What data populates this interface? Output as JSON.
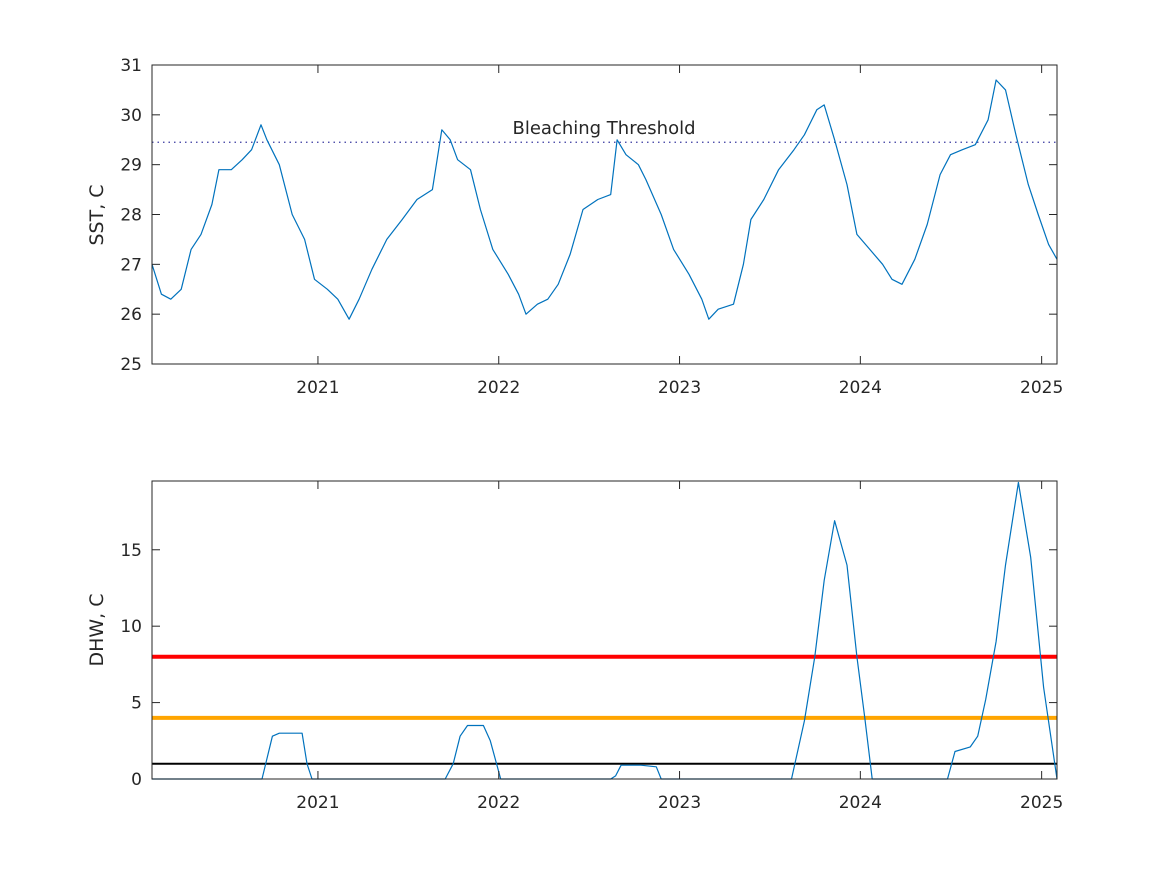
{
  "chart_data": [
    {
      "type": "line",
      "title": "",
      "xlabel": "",
      "ylabel": "SST, C",
      "xlim": [
        "2020-02-01",
        "2025-02-01"
      ],
      "ylim": [
        25,
        31
      ],
      "xticks": [
        "2021",
        "2022",
        "2023",
        "2024",
        "2025"
      ],
      "yticks": [
        "25",
        "26",
        "27",
        "28",
        "29",
        "30",
        "31"
      ],
      "grid": false,
      "threshold": {
        "label": "Bleaching Threshold",
        "value": 29.45,
        "style": "dotted",
        "color": "#3a3aa0"
      },
      "series": [
        {
          "color": "#0072BD",
          "points": [
            [
              "2020-02-01",
              27.0
            ],
            [
              "2020-02-20",
              26.4
            ],
            [
              "2020-03-10",
              26.3
            ],
            [
              "2020-03-31",
              26.5
            ],
            [
              "2020-04-20",
              27.3
            ],
            [
              "2020-05-10",
              27.6
            ],
            [
              "2020-06-01",
              28.2
            ],
            [
              "2020-06-15",
              28.9
            ],
            [
              "2020-07-10",
              28.9
            ],
            [
              "2020-08-01",
              29.1
            ],
            [
              "2020-08-20",
              29.3
            ],
            [
              "2020-09-08",
              29.8
            ],
            [
              "2020-09-20",
              29.5
            ],
            [
              "2020-10-15",
              29.0
            ],
            [
              "2020-11-10",
              28.0
            ],
            [
              "2020-12-05",
              27.5
            ],
            [
              "2020-12-25",
              26.7
            ],
            [
              "2021-01-20",
              26.5
            ],
            [
              "2021-02-10",
              26.3
            ],
            [
              "2021-03-05",
              25.9
            ],
            [
              "2021-03-25",
              26.3
            ],
            [
              "2021-04-20",
              26.9
            ],
            [
              "2021-05-20",
              27.5
            ],
            [
              "2021-06-20",
              27.9
            ],
            [
              "2021-07-20",
              28.3
            ],
            [
              "2021-08-20",
              28.5
            ],
            [
              "2021-09-08",
              29.7
            ],
            [
              "2021-09-25",
              29.5
            ],
            [
              "2021-10-10",
              29.1
            ],
            [
              "2021-11-05",
              28.9
            ],
            [
              "2021-11-25",
              28.1
            ],
            [
              "2021-12-20",
              27.3
            ],
            [
              "2022-01-20",
              26.8
            ],
            [
              "2022-02-10",
              26.4
            ],
            [
              "2022-02-25",
              26.0
            ],
            [
              "2022-03-20",
              26.2
            ],
            [
              "2022-04-10",
              26.3
            ],
            [
              "2022-05-01",
              26.6
            ],
            [
              "2022-05-25",
              27.2
            ],
            [
              "2022-06-20",
              28.1
            ],
            [
              "2022-07-20",
              28.3
            ],
            [
              "2022-08-15",
              28.4
            ],
            [
              "2022-08-28",
              29.5
            ],
            [
              "2022-09-15",
              29.2
            ],
            [
              "2022-10-10",
              29.0
            ],
            [
              "2022-10-25",
              28.7
            ],
            [
              "2022-11-25",
              28.0
            ],
            [
              "2022-12-20",
              27.3
            ],
            [
              "2023-01-20",
              26.8
            ],
            [
              "2023-02-15",
              26.3
            ],
            [
              "2023-03-01",
              25.9
            ],
            [
              "2023-03-20",
              26.1
            ],
            [
              "2023-04-20",
              26.2
            ],
            [
              "2023-05-10",
              27.0
            ],
            [
              "2023-05-25",
              27.9
            ],
            [
              "2023-06-20",
              28.3
            ],
            [
              "2023-07-20",
              28.9
            ],
            [
              "2023-08-20",
              29.3
            ],
            [
              "2023-09-10",
              29.6
            ],
            [
              "2023-10-05",
              30.1
            ],
            [
              "2023-10-20",
              30.2
            ],
            [
              "2023-11-10",
              29.5
            ],
            [
              "2023-12-05",
              28.6
            ],
            [
              "2023-12-25",
              27.6
            ],
            [
              "2024-01-20",
              27.3
            ],
            [
              "2024-02-15",
              27.0
            ],
            [
              "2024-03-05",
              26.7
            ],
            [
              "2024-03-25",
              26.6
            ],
            [
              "2024-04-20",
              27.1
            ],
            [
              "2024-05-15",
              27.8
            ],
            [
              "2024-06-10",
              28.8
            ],
            [
              "2024-07-01",
              29.2
            ],
            [
              "2024-07-25",
              29.3
            ],
            [
              "2024-08-20",
              29.4
            ],
            [
              "2024-09-15",
              29.9
            ],
            [
              "2024-10-01",
              30.7
            ],
            [
              "2024-10-20",
              30.5
            ],
            [
              "2024-11-10",
              29.6
            ],
            [
              "2024-12-05",
              28.6
            ],
            [
              "2024-12-25",
              28.0
            ],
            [
              "2025-01-15",
              27.4
            ],
            [
              "2025-02-01",
              27.1
            ]
          ]
        }
      ]
    },
    {
      "type": "line",
      "title": "",
      "xlabel": "",
      "ylabel": "DHW, C",
      "xlim": [
        "2020-02-01",
        "2025-02-01"
      ],
      "ylim": [
        0,
        19.5
      ],
      "xticks": [
        "2021",
        "2022",
        "2023",
        "2024",
        "2025"
      ],
      "yticks": [
        "0",
        "5",
        "10",
        "15"
      ],
      "grid": false,
      "reference_lines": [
        {
          "value": 8,
          "color": "#ff0000"
        },
        {
          "value": 4,
          "color": "#ffa500"
        },
        {
          "value": 1,
          "color": "#000000"
        }
      ],
      "series": [
        {
          "color": "#0072BD",
          "points": [
            [
              "2020-02-01",
              0
            ],
            [
              "2020-09-10",
              0
            ],
            [
              "2020-10-01",
              2.8
            ],
            [
              "2020-10-15",
              3.0
            ],
            [
              "2020-11-30",
              3.0
            ],
            [
              "2020-12-10",
              1.0
            ],
            [
              "2020-12-20",
              0
            ],
            [
              "2021-09-15",
              0
            ],
            [
              "2021-10-01",
              1.0
            ],
            [
              "2021-10-15",
              2.8
            ],
            [
              "2021-10-30",
              3.5
            ],
            [
              "2021-12-01",
              3.5
            ],
            [
              "2021-12-15",
              2.5
            ],
            [
              "2022-01-05",
              0
            ],
            [
              "2022-08-15",
              0
            ],
            [
              "2022-08-25",
              0.2
            ],
            [
              "2022-09-05",
              0.9
            ],
            [
              "2022-10-15",
              0.9
            ],
            [
              "2022-11-15",
              0.8
            ],
            [
              "2022-11-25",
              0
            ],
            [
              "2023-08-15",
              0
            ],
            [
              "2023-09-10",
              3.8
            ],
            [
              "2023-10-01",
              8.0
            ],
            [
              "2023-10-20",
              13.0
            ],
            [
              "2023-11-10",
              16.9
            ],
            [
              "2023-12-05",
              14.0
            ],
            [
              "2023-12-25",
              8.0
            ],
            [
              "2024-01-10",
              4.0
            ],
            [
              "2024-01-25",
              0
            ],
            [
              "2024-06-25",
              0
            ],
            [
              "2024-07-10",
              1.8
            ],
            [
              "2024-08-10",
              2.1
            ],
            [
              "2024-08-25",
              2.8
            ],
            [
              "2024-09-10",
              5.2
            ],
            [
              "2024-10-01",
              9.0
            ],
            [
              "2024-10-20",
              14.0
            ],
            [
              "2024-11-15",
              19.4
            ],
            [
              "2024-12-10",
              14.5
            ],
            [
              "2025-01-05",
              6.0
            ],
            [
              "2025-02-01",
              0
            ]
          ]
        }
      ]
    }
  ]
}
